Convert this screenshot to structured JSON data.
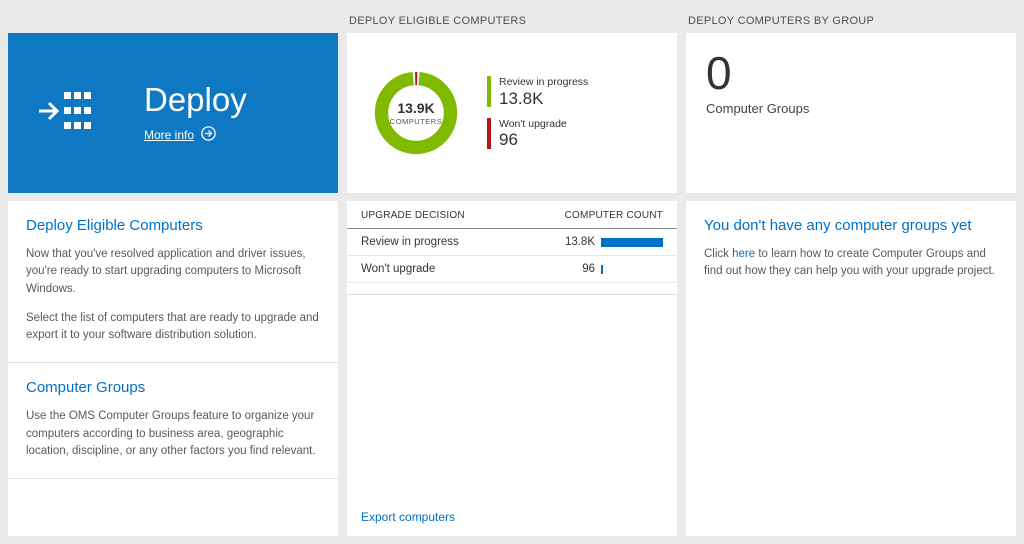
{
  "colors": {
    "page_background": "#eaeaea",
    "tile_blue": "#0f78c2",
    "accent_blue": "#0072c6",
    "bar_blue": "#0072c6",
    "donut_green": "#7fba00",
    "donut_red": "#ba141a"
  },
  "left": {
    "tile": {
      "title": "Deploy",
      "more_info": "More info"
    },
    "panel": {
      "sections": [
        {
          "heading": "Deploy Eligible Computers",
          "paragraphs": [
            "Now that you've resolved application and driver issues, you're ready to start upgrading computers to Microsoft Windows.",
            "Select the list of computers that are ready to upgrade and export it to your software distribution solution."
          ]
        },
        {
          "heading": "Computer Groups",
          "paragraphs": [
            "Use the OMS Computer Groups feature to organize your computers according to business area, geographic location, discipline, or any other factors you find relevant."
          ]
        }
      ]
    }
  },
  "middle": {
    "header": "DEPLOY ELIGIBLE COMPUTERS",
    "donut": {
      "center_value": "13.9K",
      "center_label": "COMPUTERS",
      "segments": [
        {
          "label": "Review in progress",
          "display": "13.8K",
          "value": 13800,
          "color": "#7fba00"
        },
        {
          "label": "Won't upgrade",
          "display": "96",
          "value": 96,
          "color": "#ba141a"
        }
      ]
    },
    "table": {
      "headers": [
        "UPGRADE DECISION",
        "COMPUTER COUNT"
      ],
      "rows": [
        {
          "label": "Review in progress",
          "display": "13.8K",
          "value": 13800
        },
        {
          "label": "Won't upgrade",
          "display": "96",
          "value": 96
        }
      ]
    },
    "export_link": "Export computers"
  },
  "right": {
    "header": "DEPLOY COMPUTERS BY GROUP",
    "tile": {
      "value": "0",
      "label": "Computer Groups"
    },
    "panel": {
      "heading": "You don't have any computer groups yet",
      "text_before": "Click ",
      "link": "here",
      "text_after": " to learn how to create Computer Groups and find out how they can help you with your upgrade project."
    }
  }
}
